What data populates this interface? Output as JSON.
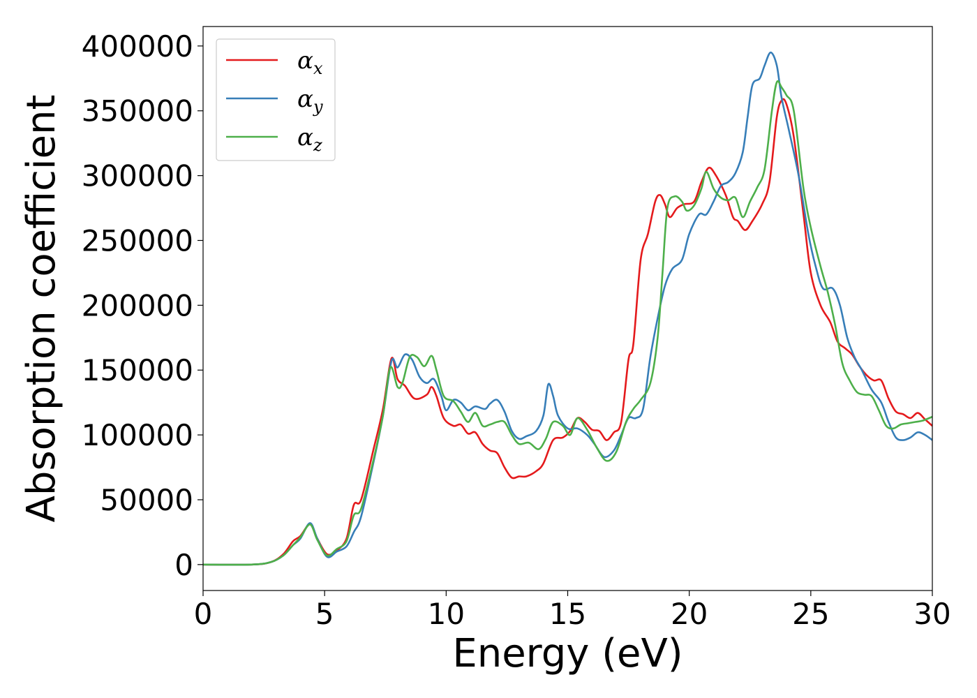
{
  "chart_data": {
    "type": "line",
    "title": "",
    "xlabel": "Energy (eV)",
    "ylabel": "Absorption coefficient",
    "xlim": [
      0,
      30
    ],
    "ylim": [
      -20000,
      415000
    ],
    "x_ticks": [
      0,
      5,
      10,
      15,
      20,
      25,
      30
    ],
    "y_ticks": [
      0,
      50000,
      100000,
      150000,
      200000,
      250000,
      300000,
      350000,
      400000
    ],
    "grid": false,
    "legend_position": "top-left",
    "series": [
      {
        "name": "α_x",
        "legend_base": "α",
        "legend_sub": "x",
        "color": "#e41a1c",
        "points": [
          [
            0,
            0
          ],
          [
            2,
            0
          ],
          [
            2.8,
            2000
          ],
          [
            3.3,
            8000
          ],
          [
            3.7,
            18000
          ],
          [
            4.0,
            22000
          ],
          [
            4.4,
            31000
          ],
          [
            4.7,
            20000
          ],
          [
            5.1,
            8000
          ],
          [
            5.5,
            11000
          ],
          [
            5.9,
            20000
          ],
          [
            6.2,
            46000
          ],
          [
            6.5,
            50000
          ],
          [
            7.0,
            88000
          ],
          [
            7.4,
            120000
          ],
          [
            7.75,
            159000
          ],
          [
            8.0,
            143000
          ],
          [
            8.3,
            138000
          ],
          [
            8.7,
            128000
          ],
          [
            9.2,
            131000
          ],
          [
            9.4,
            137000
          ],
          [
            9.6,
            130000
          ],
          [
            9.9,
            113000
          ],
          [
            10.3,
            107000
          ],
          [
            10.6,
            108000
          ],
          [
            10.9,
            101000
          ],
          [
            11.2,
            102000
          ],
          [
            11.5,
            93000
          ],
          [
            11.8,
            88000
          ],
          [
            12.1,
            86000
          ],
          [
            12.4,
            75000
          ],
          [
            12.7,
            67000
          ],
          [
            13.0,
            68000
          ],
          [
            13.3,
            68000
          ],
          [
            13.7,
            72000
          ],
          [
            14.0,
            78000
          ],
          [
            14.4,
            96000
          ],
          [
            14.8,
            98000
          ],
          [
            15.1,
            103000
          ],
          [
            15.4,
            113000
          ],
          [
            15.7,
            110000
          ],
          [
            16.0,
            104000
          ],
          [
            16.3,
            103000
          ],
          [
            16.6,
            96000
          ],
          [
            16.9,
            102000
          ],
          [
            17.2,
            110000
          ],
          [
            17.5,
            158000
          ],
          [
            17.7,
            170000
          ],
          [
            18.0,
            235000
          ],
          [
            18.3,
            255000
          ],
          [
            18.6,
            280000
          ],
          [
            18.8,
            285000
          ],
          [
            19.0,
            278000
          ],
          [
            19.2,
            268000
          ],
          [
            19.5,
            275000
          ],
          [
            19.8,
            278000
          ],
          [
            20.2,
            280000
          ],
          [
            20.5,
            295000
          ],
          [
            20.8,
            306000
          ],
          [
            21.1,
            300000
          ],
          [
            21.5,
            285000
          ],
          [
            21.8,
            268000
          ],
          [
            22.0,
            265000
          ],
          [
            22.3,
            258000
          ],
          [
            22.6,
            265000
          ],
          [
            23.0,
            278000
          ],
          [
            23.3,
            295000
          ],
          [
            23.6,
            345000
          ],
          [
            23.8,
            358000
          ],
          [
            24.0,
            355000
          ],
          [
            24.3,
            330000
          ],
          [
            24.7,
            270000
          ],
          [
            25.0,
            225000
          ],
          [
            25.4,
            200000
          ],
          [
            25.8,
            187000
          ],
          [
            26.1,
            172000
          ],
          [
            26.4,
            167000
          ],
          [
            26.7,
            162000
          ],
          [
            27.0,
            153000
          ],
          [
            27.3,
            146000
          ],
          [
            27.6,
            142000
          ],
          [
            27.9,
            142000
          ],
          [
            28.2,
            128000
          ],
          [
            28.5,
            118000
          ],
          [
            28.8,
            116000
          ],
          [
            29.1,
            113000
          ],
          [
            29.4,
            117000
          ],
          [
            29.7,
            112000
          ],
          [
            30.0,
            107000
          ]
        ]
      },
      {
        "name": "α_y",
        "legend_base": "α",
        "legend_sub": "y",
        "color": "#377eb8",
        "points": [
          [
            0,
            0
          ],
          [
            2,
            0
          ],
          [
            2.8,
            2000
          ],
          [
            3.3,
            7000
          ],
          [
            3.7,
            15000
          ],
          [
            4.0,
            20000
          ],
          [
            4.4,
            32000
          ],
          [
            4.7,
            20000
          ],
          [
            5.1,
            6000
          ],
          [
            5.5,
            10000
          ],
          [
            5.9,
            14000
          ],
          [
            6.2,
            25000
          ],
          [
            6.5,
            37000
          ],
          [
            7.0,
            78000
          ],
          [
            7.4,
            115000
          ],
          [
            7.75,
            157000
          ],
          [
            8.0,
            152000
          ],
          [
            8.3,
            162000
          ],
          [
            8.6,
            158000
          ],
          [
            8.9,
            145000
          ],
          [
            9.2,
            140000
          ],
          [
            9.5,
            143000
          ],
          [
            9.8,
            130000
          ],
          [
            10.0,
            119000
          ],
          [
            10.3,
            127000
          ],
          [
            10.6,
            125000
          ],
          [
            10.9,
            119000
          ],
          [
            11.2,
            122000
          ],
          [
            11.6,
            120000
          ],
          [
            11.8,
            124000
          ],
          [
            12.1,
            127000
          ],
          [
            12.4,
            118000
          ],
          [
            12.7,
            103000
          ],
          [
            13.0,
            97000
          ],
          [
            13.3,
            99000
          ],
          [
            13.7,
            103000
          ],
          [
            14.0,
            115000
          ],
          [
            14.2,
            139000
          ],
          [
            14.4,
            130000
          ],
          [
            14.6,
            115000
          ],
          [
            15.0,
            105000
          ],
          [
            15.4,
            105000
          ],
          [
            15.8,
            100000
          ],
          [
            16.1,
            93000
          ],
          [
            16.5,
            83000
          ],
          [
            16.9,
            88000
          ],
          [
            17.2,
            100000
          ],
          [
            17.5,
            113000
          ],
          [
            17.8,
            113000
          ],
          [
            18.1,
            120000
          ],
          [
            18.4,
            160000
          ],
          [
            18.7,
            190000
          ],
          [
            19.0,
            215000
          ],
          [
            19.3,
            228000
          ],
          [
            19.7,
            235000
          ],
          [
            20.0,
            255000
          ],
          [
            20.4,
            270000
          ],
          [
            20.7,
            270000
          ],
          [
            21.0,
            280000
          ],
          [
            21.3,
            292000
          ],
          [
            21.6,
            295000
          ],
          [
            21.9,
            302000
          ],
          [
            22.2,
            318000
          ],
          [
            22.4,
            345000
          ],
          [
            22.6,
            370000
          ],
          [
            22.9,
            375000
          ],
          [
            23.1,
            385000
          ],
          [
            23.35,
            395000
          ],
          [
            23.6,
            385000
          ],
          [
            23.8,
            360000
          ],
          [
            24.1,
            335000
          ],
          [
            24.5,
            300000
          ],
          [
            24.9,
            255000
          ],
          [
            25.2,
            230000
          ],
          [
            25.5,
            213000
          ],
          [
            25.9,
            213000
          ],
          [
            26.2,
            200000
          ],
          [
            26.5,
            175000
          ],
          [
            26.8,
            160000
          ],
          [
            27.1,
            150000
          ],
          [
            27.5,
            135000
          ],
          [
            27.9,
            125000
          ],
          [
            28.2,
            110000
          ],
          [
            28.5,
            98000
          ],
          [
            28.8,
            96000
          ],
          [
            29.1,
            98000
          ],
          [
            29.4,
            102000
          ],
          [
            29.7,
            100000
          ],
          [
            30.0,
            96000
          ]
        ]
      },
      {
        "name": "α_z",
        "legend_base": "α",
        "legend_sub": "z",
        "color": "#4daf4a",
        "points": [
          [
            0,
            0
          ],
          [
            2,
            0
          ],
          [
            2.8,
            2000
          ],
          [
            3.3,
            7000
          ],
          [
            3.7,
            15000
          ],
          [
            4.0,
            21000
          ],
          [
            4.4,
            31000
          ],
          [
            4.7,
            19000
          ],
          [
            5.1,
            7000
          ],
          [
            5.5,
            12000
          ],
          [
            5.9,
            18000
          ],
          [
            6.2,
            38000
          ],
          [
            6.5,
            43000
          ],
          [
            7.0,
            80000
          ],
          [
            7.4,
            115000
          ],
          [
            7.7,
            152000
          ],
          [
            8.0,
            137000
          ],
          [
            8.2,
            140000
          ],
          [
            8.5,
            160000
          ],
          [
            8.8,
            160000
          ],
          [
            9.1,
            153000
          ],
          [
            9.4,
            161000
          ],
          [
            9.6,
            150000
          ],
          [
            9.9,
            130000
          ],
          [
            10.3,
            126000
          ],
          [
            10.6,
            118000
          ],
          [
            10.9,
            110000
          ],
          [
            11.2,
            117000
          ],
          [
            11.5,
            107000
          ],
          [
            11.8,
            108000
          ],
          [
            12.1,
            110000
          ],
          [
            12.4,
            110000
          ],
          [
            12.7,
            100000
          ],
          [
            13.0,
            93000
          ],
          [
            13.4,
            94000
          ],
          [
            13.8,
            89000
          ],
          [
            14.1,
            97000
          ],
          [
            14.4,
            110000
          ],
          [
            14.8,
            107000
          ],
          [
            15.1,
            100000
          ],
          [
            15.4,
            113000
          ],
          [
            15.8,
            104000
          ],
          [
            16.2,
            90000
          ],
          [
            16.6,
            80000
          ],
          [
            17.0,
            87000
          ],
          [
            17.4,
            110000
          ],
          [
            17.7,
            120000
          ],
          [
            18.0,
            127000
          ],
          [
            18.4,
            140000
          ],
          [
            18.7,
            175000
          ],
          [
            18.9,
            225000
          ],
          [
            19.1,
            275000
          ],
          [
            19.4,
            284000
          ],
          [
            19.7,
            280000
          ],
          [
            19.9,
            273000
          ],
          [
            20.2,
            277000
          ],
          [
            20.5,
            290000
          ],
          [
            20.7,
            303000
          ],
          [
            21.0,
            290000
          ],
          [
            21.3,
            283000
          ],
          [
            21.6,
            281000
          ],
          [
            21.9,
            283000
          ],
          [
            22.2,
            268000
          ],
          [
            22.5,
            280000
          ],
          [
            22.8,
            291000
          ],
          [
            23.1,
            305000
          ],
          [
            23.4,
            350000
          ],
          [
            23.6,
            372000
          ],
          [
            23.8,
            368000
          ],
          [
            24.0,
            362000
          ],
          [
            24.3,
            350000
          ],
          [
            24.7,
            290000
          ],
          [
            25.0,
            260000
          ],
          [
            25.4,
            230000
          ],
          [
            25.7,
            210000
          ],
          [
            26.0,
            185000
          ],
          [
            26.3,
            155000
          ],
          [
            26.6,
            142000
          ],
          [
            26.9,
            133000
          ],
          [
            27.2,
            131000
          ],
          [
            27.5,
            130000
          ],
          [
            27.8,
            119000
          ],
          [
            28.1,
            107000
          ],
          [
            28.4,
            105000
          ],
          [
            28.7,
            108000
          ],
          [
            29.0,
            109000
          ],
          [
            29.3,
            110000
          ],
          [
            29.6,
            111000
          ],
          [
            30.0,
            114000
          ]
        ]
      }
    ]
  }
}
